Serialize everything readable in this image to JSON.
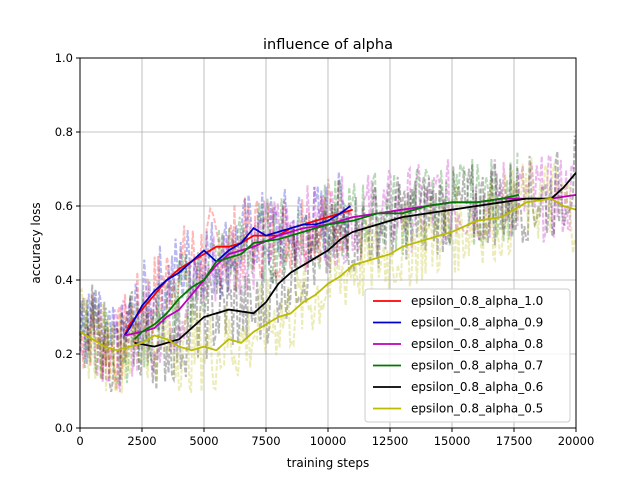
{
  "chart_data": {
    "type": "line",
    "title": "influence of alpha",
    "xlabel": "training steps",
    "ylabel": "accuracy loss",
    "xlim": [
      0,
      20000
    ],
    "ylim": [
      0.0,
      1.0
    ],
    "xticks": [
      0,
      2500,
      5000,
      7500,
      10000,
      12500,
      15000,
      17500,
      20000
    ],
    "xtick_labels": [
      "0",
      "2500",
      "5000",
      "7500",
      "10000",
      "12500",
      "15000",
      "17500",
      "20000"
    ],
    "yticks": [
      0.0,
      0.2,
      0.4,
      0.6,
      0.8,
      1.0
    ],
    "ytick_labels": [
      "0.0",
      "0.2",
      "0.4",
      "0.6",
      "0.8",
      "1.0"
    ],
    "grid": true,
    "legend_position": "lower right",
    "series": [
      {
        "name": "epsilon_0.8_alpha_1.0",
        "color": "#ff0000",
        "x": [
          1800,
          2000,
          2500,
          3000,
          3500,
          4000,
          4500,
          5000,
          5500,
          6000,
          6500,
          7000,
          7500,
          8000,
          8500,
          9000,
          9500,
          10000,
          10500,
          11000
        ],
        "values": [
          0.25,
          0.28,
          0.32,
          0.36,
          0.4,
          0.43,
          0.45,
          0.47,
          0.49,
          0.49,
          0.5,
          0.52,
          0.52,
          0.52,
          0.54,
          0.55,
          0.56,
          0.57,
          0.58,
          0.59
        ]
      },
      {
        "name": "epsilon_0.8_alpha_0.9",
        "color": "#0000cc",
        "x": [
          1800,
          2000,
          2500,
          3000,
          3500,
          4000,
          4500,
          5000,
          5500,
          6000,
          6500,
          7000,
          7500,
          8000,
          8500,
          9000,
          9500,
          10000,
          10500,
          10900
        ],
        "values": [
          0.25,
          0.27,
          0.33,
          0.37,
          0.4,
          0.42,
          0.45,
          0.48,
          0.45,
          0.48,
          0.5,
          0.54,
          0.52,
          0.53,
          0.54,
          0.55,
          0.55,
          0.56,
          0.58,
          0.6
        ]
      },
      {
        "name": "epsilon_0.8_alpha_0.8",
        "color": "#bb00bb",
        "x": [
          1800,
          2500,
          3000,
          3500,
          4000,
          4500,
          5000,
          5500,
          6000,
          7000,
          8000,
          9000,
          10000,
          11000,
          12000,
          13000,
          14000,
          15000,
          16000,
          17000,
          18000,
          19000,
          20000
        ],
        "values": [
          0.25,
          0.26,
          0.27,
          0.3,
          0.32,
          0.36,
          0.4,
          0.44,
          0.47,
          0.49,
          0.52,
          0.54,
          0.55,
          0.57,
          0.58,
          0.59,
          0.6,
          0.61,
          0.61,
          0.62,
          0.62,
          0.62,
          0.63
        ]
      },
      {
        "name": "epsilon_0.8_alpha_0.7",
        "color": "#007700",
        "x": [
          2200,
          2500,
          3000,
          3500,
          4000,
          4500,
          5000,
          5500,
          6000,
          6500,
          7000,
          8000,
          9000,
          10000,
          11000,
          12000,
          13000,
          14000,
          15000,
          16000,
          17000,
          17700
        ],
        "values": [
          0.24,
          0.26,
          0.28,
          0.31,
          0.35,
          0.38,
          0.4,
          0.45,
          0.46,
          0.47,
          0.5,
          0.51,
          0.53,
          0.55,
          0.56,
          0.58,
          0.58,
          0.6,
          0.61,
          0.61,
          0.62,
          0.63
        ]
      },
      {
        "name": "epsilon_0.8_alpha_0.6",
        "color": "#000000",
        "x": [
          2200,
          3000,
          4000,
          5000,
          6000,
          7000,
          7500,
          8000,
          8500,
          9000,
          9500,
          10000,
          10500,
          11000,
          12000,
          13000,
          14000,
          15000,
          16000,
          17000,
          18000,
          19000,
          19500,
          20000
        ],
        "values": [
          0.23,
          0.22,
          0.24,
          0.3,
          0.32,
          0.31,
          0.34,
          0.39,
          0.42,
          0.44,
          0.46,
          0.48,
          0.51,
          0.53,
          0.55,
          0.57,
          0.58,
          0.59,
          0.6,
          0.61,
          0.62,
          0.62,
          0.65,
          0.69
        ]
      },
      {
        "name": "epsilon_0.8_alpha_0.5",
        "color": "#bbbb00",
        "x": [
          0,
          500,
          1000,
          1500,
          2000,
          2500,
          3000,
          3500,
          4000,
          4500,
          5000,
          5500,
          6000,
          6500,
          7000,
          7500,
          8000,
          8500,
          9000,
          9500,
          10000,
          10500,
          11000,
          11500,
          12000,
          12500,
          13000,
          14000,
          15000,
          16000,
          17000,
          18000,
          19000,
          19500,
          20000
        ],
        "values": [
          0.26,
          0.24,
          0.22,
          0.21,
          0.22,
          0.23,
          0.25,
          0.24,
          0.22,
          0.21,
          0.22,
          0.21,
          0.24,
          0.23,
          0.26,
          0.28,
          0.3,
          0.31,
          0.34,
          0.36,
          0.39,
          0.41,
          0.44,
          0.45,
          0.46,
          0.47,
          0.49,
          0.51,
          0.53,
          0.56,
          0.57,
          0.61,
          0.62,
          0.6,
          0.59
        ]
      }
    ]
  }
}
